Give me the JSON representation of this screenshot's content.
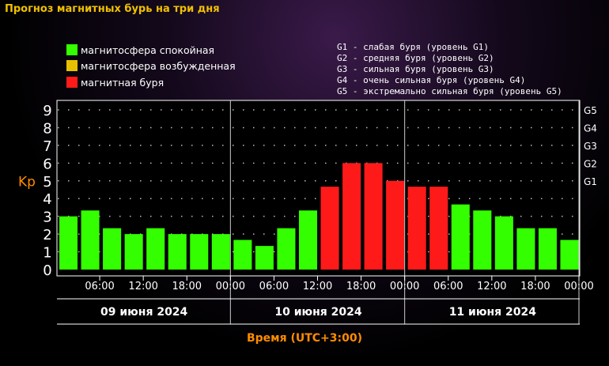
{
  "chart_data": {
    "type": "bar",
    "title": "Прогноз магнитных бурь на три дня",
    "xlabel": "Время (UTC+3:00)",
    "ylabel": "Kp",
    "ylim": [
      0,
      9
    ],
    "y_ticks": [
      "0",
      "1",
      "2",
      "3",
      "4",
      "5",
      "6",
      "7",
      "8",
      "9"
    ],
    "g_ticks": [
      {
        "kp": 5,
        "label": "G1"
      },
      {
        "kp": 6,
        "label": "G2"
      },
      {
        "kp": 7,
        "label": "G3"
      },
      {
        "kp": 8,
        "label": "G4"
      },
      {
        "kp": 9,
        "label": "G5"
      }
    ],
    "time_ticks": [
      "06:00",
      "12:00",
      "18:00",
      "00:00",
      "06:00",
      "12:00",
      "18:00",
      "00:00",
      "06:00",
      "12:00",
      "18:00",
      "00:00"
    ],
    "days": [
      "09 июня 2024",
      "10 июня 2024",
      "11 июня 2024"
    ],
    "values": [
      3.0,
      3.33,
      2.33,
      2.0,
      2.33,
      2.0,
      2.0,
      2.0,
      1.67,
      1.33,
      2.33,
      3.33,
      4.67,
      6.0,
      6.0,
      5.0,
      4.67,
      4.67,
      3.67,
      3.33,
      3.0,
      2.33,
      2.33,
      1.67
    ],
    "colors": {
      "quiet": "#33ff00",
      "unsettled": "#e8c000",
      "storm": "#ff1a1a"
    },
    "grid": true
  },
  "legend": {
    "quiet": "магнитосфера спокойная",
    "unsettled": "магнитосфера возбужденная",
    "storm": "магнитная буря"
  },
  "gscale": [
    "G1 - слабая буря (уровень G1)",
    "G2 - средняя буря (уровень G2)",
    "G3 - сильная буря (уровень G3)",
    "G4 - очень сильная буря (уровень G4)",
    "G5 - экстремально сильная буря (уровень G5)"
  ]
}
